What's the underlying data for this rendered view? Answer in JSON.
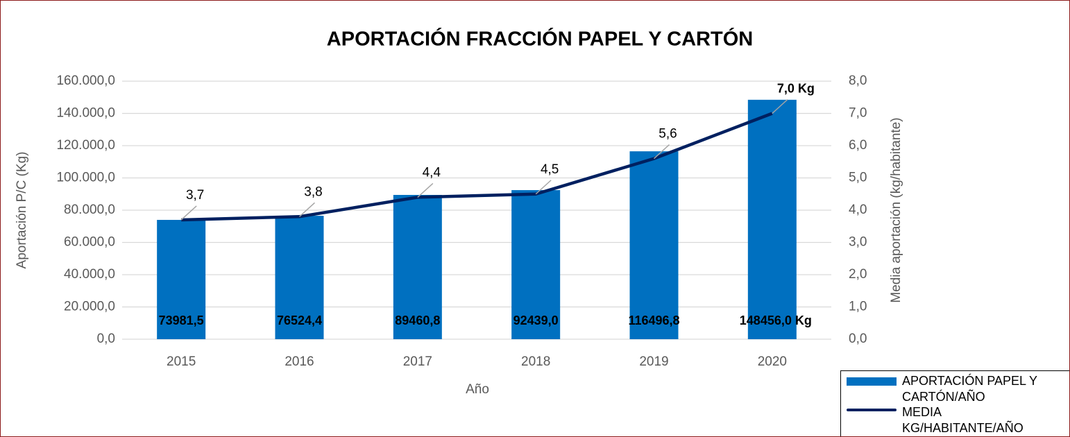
{
  "chart_data": {
    "type": "bar+line",
    "title": "APORTACIÓN FRACCIÓN PAPEL Y CARTÓN",
    "x_label": "Año",
    "y_label": "Aportación P/C (Kg)",
    "y2_label": "Media aportación (kg/habitante)",
    "categories": [
      "2015",
      "2016",
      "2017",
      "2018",
      "2019",
      "2020"
    ],
    "series": [
      {
        "name": "APORTACIÓN PAPEL Y CARTÓN/AÑO",
        "type": "bar",
        "color": "#0070c0",
        "values": [
          73981.5,
          76524.4,
          89460.8,
          92439.0,
          116496.8,
          148456.0
        ],
        "value_labels": [
          "73981,5",
          "76524,4",
          "89460,8",
          "92439,0",
          "116496,8",
          "148456,0 Kg"
        ]
      },
      {
        "name": "MEDIA KG/HABITANTE/AÑO",
        "type": "line",
        "axis": "y2",
        "color": "#002060",
        "values": [
          3.7,
          3.8,
          4.4,
          4.5,
          5.6,
          7.0
        ],
        "value_labels": [
          "3,7",
          "3,8",
          "4,4",
          "4,5",
          "5,6",
          "7,0 Kg"
        ]
      }
    ],
    "ylim": [
      0,
      160000
    ],
    "yticks": [
      {
        "value": 0,
        "label": "0,0"
      },
      {
        "value": 20000,
        "label": "20.000,0"
      },
      {
        "value": 40000,
        "label": "40.000,0"
      },
      {
        "value": 60000,
        "label": "60.000,0"
      },
      {
        "value": 80000,
        "label": "80.000,0"
      },
      {
        "value": 100000,
        "label": "100.000,0"
      },
      {
        "value": 120000,
        "label": "120.000,0"
      },
      {
        "value": 140000,
        "label": "140.000,0"
      },
      {
        "value": 160000,
        "label": "160.000,0"
      }
    ],
    "y2lim": [
      0,
      8
    ],
    "y2ticks": [
      {
        "value": 0,
        "label": "0,0"
      },
      {
        "value": 1,
        "label": "1,0"
      },
      {
        "value": 2,
        "label": "2,0"
      },
      {
        "value": 3,
        "label": "3,0"
      },
      {
        "value": 4,
        "label": "4,0"
      },
      {
        "value": 5,
        "label": "5,0"
      },
      {
        "value": 6,
        "label": "6,0"
      },
      {
        "value": 7,
        "label": "7,0"
      },
      {
        "value": 8,
        "label": "8,0"
      }
    ],
    "grid": true,
    "legend": "bottom-right"
  }
}
